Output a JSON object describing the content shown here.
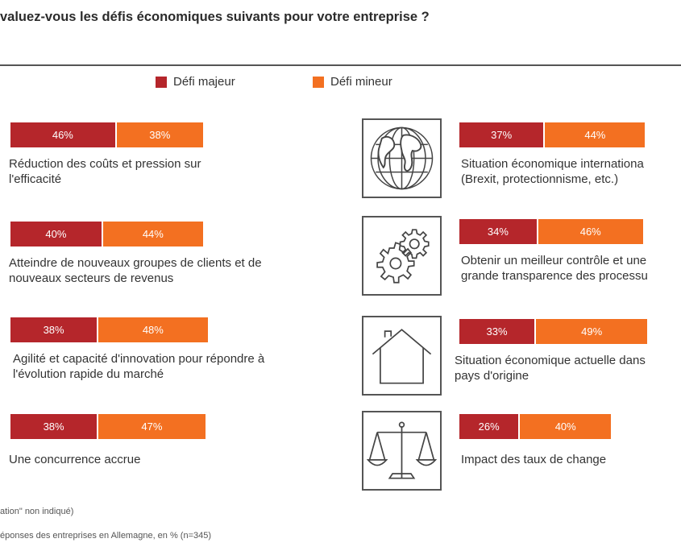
{
  "title": "valuez-vous les défis économiques suivants pour votre entreprise ?",
  "legend": {
    "major": "Défi majeur",
    "minor": "Défi mineur",
    "major_color": "#b5262b",
    "minor_color": "#f37021"
  },
  "icons": [
    "globe-icon",
    "gears-icon",
    "house-icon",
    "scales-icon"
  ],
  "footnotes": {
    "line1": "ation\" non indiqué)",
    "line2": "éponses des entreprises en Allemagne, en % (n=345)"
  },
  "chart_data": {
    "type": "bar",
    "stacked": true,
    "unit": "%",
    "series": [
      {
        "name": "Défi majeur",
        "color": "#b5262b"
      },
      {
        "name": "Défi mineur",
        "color": "#f37021"
      }
    ],
    "items": [
      {
        "label_lines": [
          "Réduction des coûts et pression sur",
          "l'efficacité"
        ],
        "major": 46,
        "minor": 38
      },
      {
        "label_lines": [
          "Atteindre de nouveaux groupes de clients et de",
          "nouveaux secteurs de revenus"
        ],
        "major": 40,
        "minor": 44
      },
      {
        "label_lines": [
          "Agilité et capacité d'innovation pour répondre à",
          "l'évolution rapide du marché"
        ],
        "major": 38,
        "minor": 48
      },
      {
        "label_lines": [
          "Une concurrence accrue"
        ],
        "major": 38,
        "minor": 47
      },
      {
        "label_lines": [
          "Situation économique internationa",
          "(Brexit, protectionnisme, etc.)"
        ],
        "major": 37,
        "minor": 44
      },
      {
        "label_lines": [
          "Obtenir un meilleur contrôle et une",
          "grande transparence des processu"
        ],
        "major": 34,
        "minor": 46
      },
      {
        "label_lines": [
          "Situation économique actuelle dans",
          "pays d'origine"
        ],
        "major": 33,
        "minor": 49
      },
      {
        "label_lines": [
          "Impact des taux de change"
        ],
        "major": 26,
        "minor": 40
      }
    ]
  }
}
